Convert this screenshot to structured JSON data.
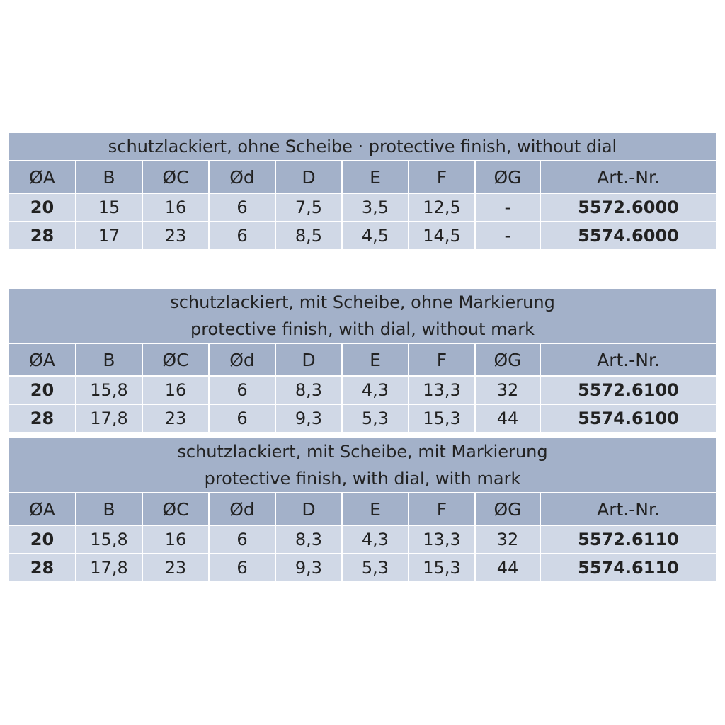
{
  "headers": [
    "ØA",
    "B",
    "ØC",
    "Ød",
    "D",
    "E",
    "F",
    "ØG",
    "Art.-Nr."
  ],
  "colors": {
    "header_bg": "#a3b1c9",
    "row_bg": "#d0d8e6"
  },
  "tables": [
    {
      "title": [
        "schutzlackiert, ohne Scheibe · protective finish, without dial"
      ],
      "rows": [
        [
          "20",
          "15",
          "16",
          "6",
          "7,5",
          "3,5",
          "12,5",
          "-",
          "5572.6000"
        ],
        [
          "28",
          "17",
          "23",
          "6",
          "8,5",
          "4,5",
          "14,5",
          "-",
          "5574.6000"
        ]
      ]
    },
    {
      "title": [
        "schutzlackiert, mit Scheibe, ohne Markierung",
        "protective finish, with dial, without mark"
      ],
      "rows": [
        [
          "20",
          "15,8",
          "16",
          "6",
          "8,3",
          "4,3",
          "13,3",
          "32",
          "5572.6100"
        ],
        [
          "28",
          "17,8",
          "23",
          "6",
          "9,3",
          "5,3",
          "15,3",
          "44",
          "5574.6100"
        ]
      ]
    },
    {
      "title": [
        "schutzlackiert, mit Scheibe, mit Markierung",
        "protective finish, with dial, with mark"
      ],
      "rows": [
        [
          "20",
          "15,8",
          "16",
          "6",
          "8,3",
          "4,3",
          "13,3",
          "32",
          "5572.6110"
        ],
        [
          "28",
          "17,8",
          "23",
          "6",
          "9,3",
          "5,3",
          "15,3",
          "44",
          "5574.6110"
        ]
      ]
    }
  ]
}
